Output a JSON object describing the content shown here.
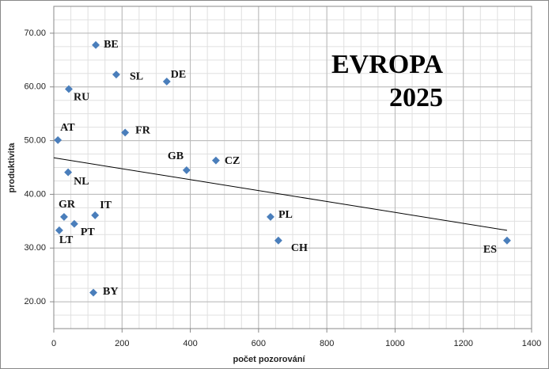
{
  "chart_data": {
    "type": "scatter",
    "title": [
      "EVROPA",
      "2025"
    ],
    "x_label": "počet pozorování",
    "y_label": "produktivita",
    "categories": [
      "BE",
      "SL",
      "DE",
      "RU",
      "AT",
      "FR",
      "GB",
      "CZ",
      "NL",
      "GR",
      "IT",
      "PT",
      "LT",
      "BY",
      "PL",
      "CH",
      "ES"
    ],
    "x": [
      123,
      183,
      331,
      44,
      12,
      209,
      389,
      475,
      42,
      30,
      121,
      60,
      16,
      116,
      635,
      658,
      1328
    ],
    "values": [
      67.8,
      62.3,
      61.0,
      59.6,
      50.1,
      51.5,
      44.5,
      46.3,
      44.1,
      35.8,
      36.1,
      34.5,
      33.3,
      21.7,
      35.8,
      31.4,
      31.4
    ],
    "color": "#4a7ebb",
    "trendline": {
      "x": [
        0,
        1328
      ],
      "y": [
        46.8,
        33.3
      ],
      "color": "#000000"
    },
    "xlim": [
      0,
      1400
    ],
    "xticks": [
      0,
      200,
      400,
      600,
      800,
      1000,
      1200,
      1400
    ],
    "ylim": [
      15,
      75
    ],
    "yticks": [
      {
        "value": 20,
        "label": "20.00"
      },
      {
        "value": 30,
        "label": "30.00"
      },
      {
        "value": 40,
        "label": "40.00"
      },
      {
        "value": 50,
        "label": "50.00"
      },
      {
        "value": 60,
        "label": "60.00"
      },
      {
        "value": 70,
        "label": "70.00"
      }
    ],
    "grid": true
  }
}
